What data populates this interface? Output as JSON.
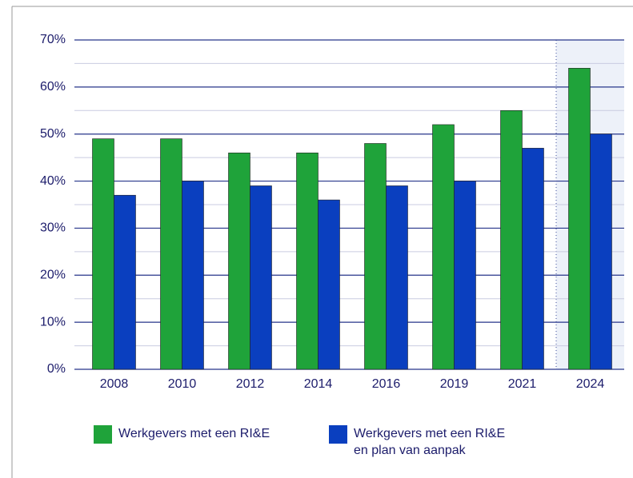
{
  "chart_data": {
    "type": "bar",
    "categories": [
      "2008",
      "2010",
      "2012",
      "2014",
      "2016",
      "2019",
      "2021",
      "2024"
    ],
    "series": [
      {
        "name": "Werkgevers met een RI&E",
        "color": "#1fa33a",
        "values": [
          49,
          49,
          46,
          46,
          48,
          52,
          55,
          64
        ]
      },
      {
        "name": "Werkgevers met een RI&E en plan van aanpak",
        "color": "#0a3fbf",
        "values": [
          37,
          40,
          39,
          36,
          39,
          40,
          47,
          50
        ]
      }
    ],
    "ylim": [
      0,
      70
    ],
    "yticks": [
      {
        "value": 0,
        "label": "0%"
      },
      {
        "value": 10,
        "label": "10%"
      },
      {
        "value": 20,
        "label": "20%"
      },
      {
        "value": 30,
        "label": "30%"
      },
      {
        "value": 40,
        "label": "40%"
      },
      {
        "value": 50,
        "label": "50%"
      },
      {
        "value": 60,
        "label": "60%"
      },
      {
        "value": 70,
        "label": "70%"
      }
    ],
    "minor_yticks": [
      5,
      15,
      25,
      35,
      45,
      55,
      65
    ],
    "grid": true
  }
}
